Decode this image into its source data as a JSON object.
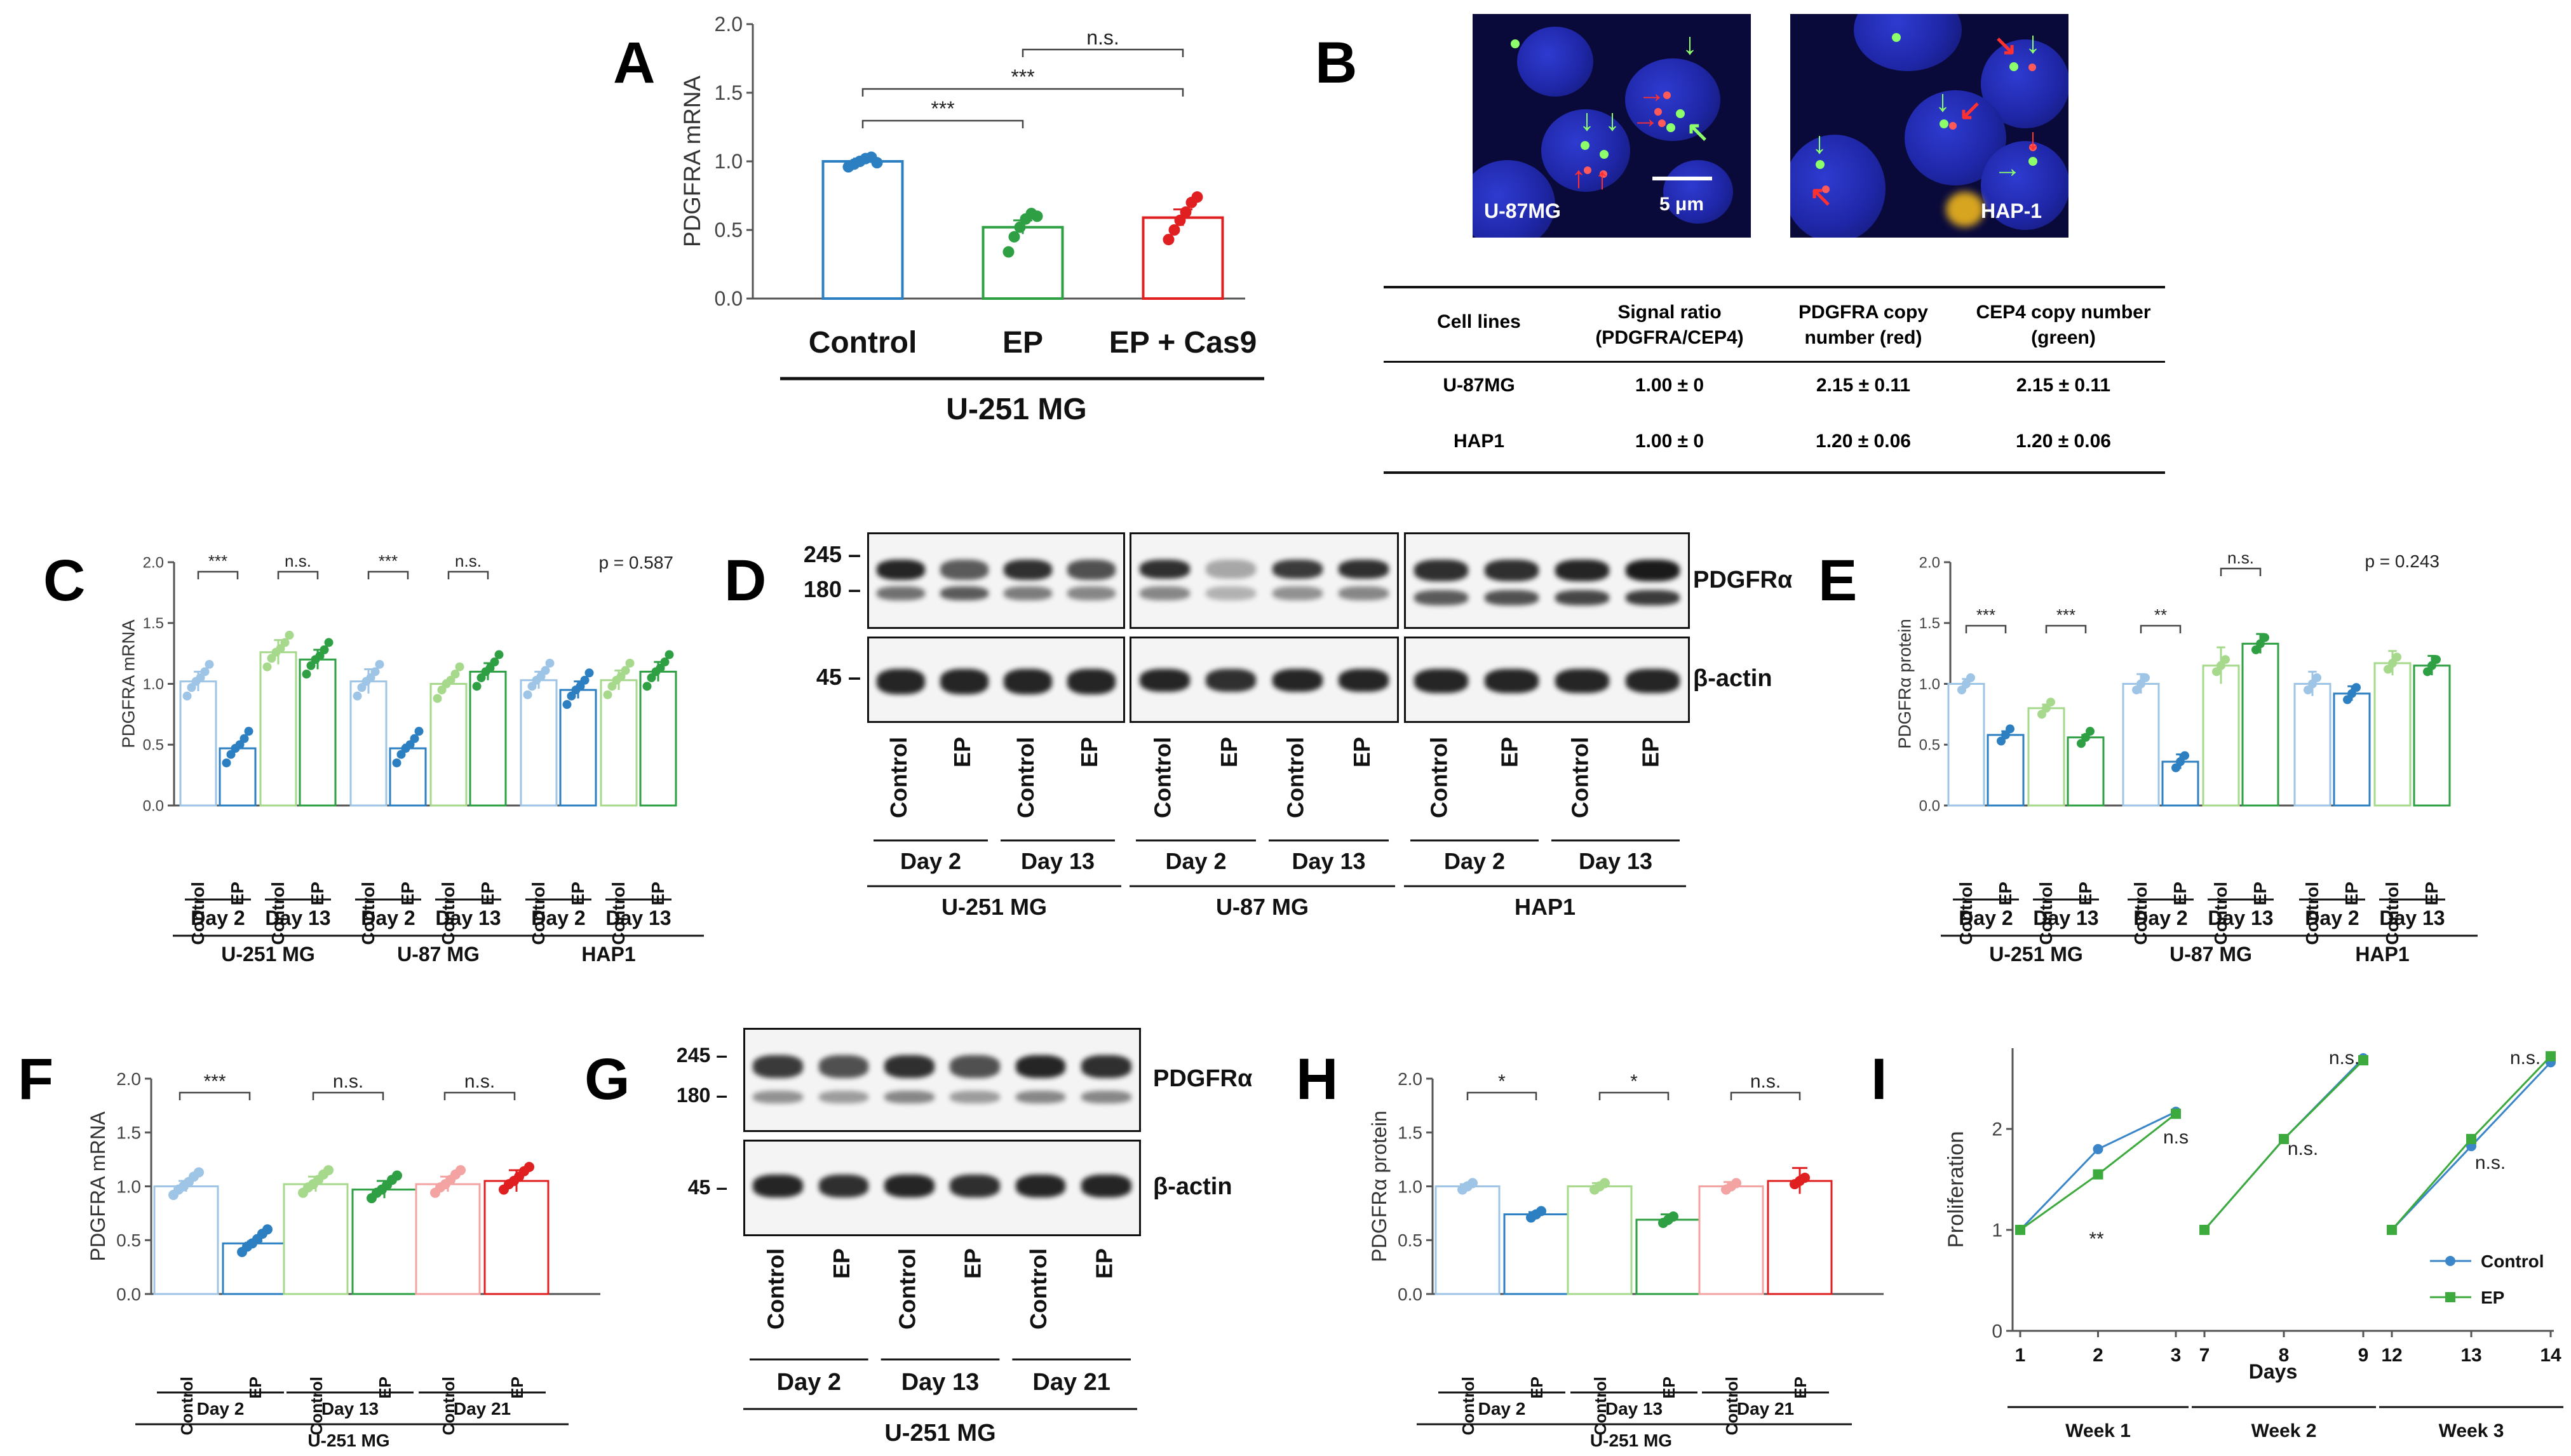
{
  "figure": {
    "panels": [
      "A",
      "B",
      "C",
      "D",
      "E",
      "F",
      "G",
      "H",
      "I"
    ]
  },
  "panel_a": {
    "label": "A",
    "ylabel": "PDGFRA mRNA",
    "yticks": [
      "0.0",
      "0.5",
      "1.0",
      "1.5",
      "2.0"
    ],
    "categories": [
      "Control",
      "EP",
      "EP + Cas9"
    ],
    "group_label": "U-251 MG",
    "sig": [
      {
        "between": [
          "Control",
          "EP"
        ],
        "text": "***"
      },
      {
        "between": [
          "Control",
          "EP + Cas9"
        ],
        "text": "***"
      },
      {
        "between": [
          "EP",
          "EP + Cas9"
        ],
        "text": "n.s."
      }
    ]
  },
  "panel_b": {
    "label": "B",
    "images": [
      {
        "caption": "U-87MG",
        "scalebar": "5 μm"
      },
      {
        "caption": "HAP-1",
        "scalebar": ""
      }
    ],
    "table": {
      "headers": [
        "Cell lines",
        "Signal ratio (PDGFRA/CEP4)",
        "PDGFRA copy number (red)",
        "CEP4 copy number  (green)"
      ],
      "rows": [
        [
          "U-87MG",
          "1.00 ± 0",
          "2.15 ± 0.11",
          "2.15 ± 0.11"
        ],
        [
          "HAP1",
          "1.00 ± 0",
          "1.20 ± 0.06",
          "1.20 ± 0.06"
        ]
      ]
    }
  },
  "panel_c": {
    "label": "C",
    "ylabel": "PDGFRA mRNA",
    "yticks": [
      "0.0",
      "0.5",
      "1.0",
      "1.5",
      "2.0"
    ],
    "pvalue": "p = 0.587",
    "sig": [
      "***",
      "n.s.",
      "***",
      "n.s."
    ],
    "cond_labels": [
      "Control",
      "EP"
    ],
    "day_labels": [
      "Day 2",
      "Day 13"
    ],
    "cell_lines": [
      "U-251 MG",
      "U-87 MG",
      "HAP1"
    ]
  },
  "panel_d": {
    "label": "D",
    "markers_top": [
      "245 –",
      "180 –"
    ],
    "marker_bottom": "45 –",
    "protein_top": "PDGFRα",
    "protein_bottom": "β-actin",
    "lane_labels": [
      "Control",
      "EP"
    ],
    "day_labels": [
      "Day 2",
      "Day 13"
    ],
    "cell_lines": [
      "U-251 MG",
      "U-87 MG",
      "HAP1"
    ]
  },
  "panel_e": {
    "label": "E",
    "ylabel": "PDGFRα protein",
    "yticks": [
      "0.0",
      "0.5",
      "1.0",
      "1.5",
      "2.0"
    ],
    "pvalue": "p = 0.243",
    "sig": [
      "***",
      "***",
      "**",
      "n.s."
    ],
    "cond_labels": [
      "Control",
      "EP"
    ],
    "day_labels": [
      "Day 2",
      "Day 13"
    ],
    "cell_lines": [
      "U-251 MG",
      "U-87 MG",
      "HAP1"
    ]
  },
  "panel_f": {
    "label": "F",
    "ylabel": "PDGFRA mRNA",
    "yticks": [
      "0.0",
      "0.5",
      "1.0",
      "1.5",
      "2.0"
    ],
    "sig": [
      "***",
      "n.s.",
      "n.s."
    ],
    "cond_labels": [
      "Control",
      "EP"
    ],
    "day_labels": [
      "Day 2",
      "Day 13",
      "Day 21"
    ],
    "cell_line": "U-251 MG"
  },
  "panel_g": {
    "label": "G",
    "markers_top": [
      "245 –",
      "180 –"
    ],
    "marker_bottom": "45 –",
    "protein_top": "PDGFRα",
    "protein_bottom": "β-actin",
    "lane_labels": [
      "Control",
      "EP"
    ],
    "day_labels": [
      "Day 2",
      "Day 13",
      "Day 21"
    ],
    "cell_line": "U-251 MG"
  },
  "panel_h": {
    "label": "H",
    "ylabel": "PDGFRα protein",
    "yticks": [
      "0.0",
      "0.5",
      "1.0",
      "1.5",
      "2.0"
    ],
    "sig": [
      "*",
      "*",
      "n.s."
    ],
    "cond_labels": [
      "Control",
      "EP"
    ],
    "day_labels": [
      "Day 2",
      "Day 13",
      "Day 21"
    ],
    "cell_line": "U-251 MG"
  },
  "panel_i": {
    "label": "I",
    "ylabel": "Proliferation",
    "xlabel": "Days",
    "yticks": [
      "0",
      "1",
      "2"
    ],
    "weeks": [
      "Week 1",
      "Week 2",
      "Week 3"
    ],
    "annotations": [
      [
        "**",
        "n.s"
      ],
      [
        "n.s.",
        "n.s."
      ],
      [
        "n.s.",
        "n.s."
      ]
    ],
    "legend": [
      "Control",
      "EP"
    ]
  },
  "colors": {
    "blue_light": "#9ec4e6",
    "blue": "#2c7fc1",
    "green_light": "#a6d98c",
    "green": "#2ea043",
    "red_light": "#f4a3a3",
    "red": "#e02020",
    "black": "#111111",
    "line_control": "#3a86c8",
    "line_ep": "#3caa3c"
  },
  "chart_data": [
    {
      "type": "bar",
      "panel": "A",
      "categories": [
        "Control",
        "EP",
        "EP + Cas9"
      ],
      "values": [
        1.0,
        0.52,
        0.59
      ],
      "errors": [
        0.02,
        0.05,
        0.06
      ],
      "points": [
        [
          0.96,
          0.98,
          1.0,
          1.02,
          1.03,
          0.99
        ],
        [
          0.34,
          0.45,
          0.52,
          0.58,
          0.62,
          0.6
        ],
        [
          0.43,
          0.5,
          0.57,
          0.63,
          0.7,
          0.74
        ]
      ],
      "ylabel": "PDGFRA mRNA",
      "ylim": [
        0,
        2.0
      ]
    },
    {
      "type": "bar",
      "panel": "C",
      "categories": [
        "U-251 MG Day 2 Control",
        "U-251 MG Day 2 EP",
        "U-251 MG Day 13 Control",
        "U-251 MG Day 13 EP",
        "U-87 MG Day 2 Control",
        "U-87 MG Day 2 EP",
        "U-87 MG Day 13 Control",
        "U-87 MG Day 13 EP",
        "HAP1 Day 2 Control",
        "HAP1 Day 2 EP",
        "HAP1 Day 13 Control",
        "HAP1 Day 13 EP"
      ],
      "values": [
        1.02,
        0.47,
        1.26,
        1.2,
        1.02,
        0.47,
        1.0,
        1.1,
        1.03,
        0.95,
        1.03,
        1.1
      ],
      "errors": [
        0.08,
        0.02,
        0.1,
        0.08,
        0.1,
        0.03,
        0.03,
        0.07,
        0.07,
        0.07,
        0.08,
        0.08
      ],
      "ylabel": "PDGFRA mRNA",
      "ylim": [
        0,
        2.0
      ]
    },
    {
      "type": "bar",
      "panel": "E",
      "categories": [
        "U-251 MG Day 2 Control",
        "U-251 MG Day 2 EP",
        "U-251 MG Day 13 Control",
        "U-251 MG Day 13 EP",
        "U-87 MG Day 2 Control",
        "U-87 MG Day 2 EP",
        "U-87 MG Day 13 Control",
        "U-87 MG Day 13 EP",
        "HAP1 Day 2 Control",
        "HAP1 Day 2 EP",
        "HAP1 Day 13 Control",
        "HAP1 Day 13 EP"
      ],
      "values": [
        1.0,
        0.58,
        0.8,
        0.56,
        1.0,
        0.36,
        1.15,
        1.33,
        1.0,
        0.92,
        1.17,
        1.15
      ],
      "errors": [
        0.04,
        0.03,
        0.03,
        0.02,
        0.08,
        0.06,
        0.15,
        0.08,
        0.1,
        0.06,
        0.1,
        0.08
      ],
      "ylabel": "PDGFRα protein",
      "ylim": [
        0,
        2.0
      ]
    },
    {
      "type": "bar",
      "panel": "F",
      "categories": [
        "Day 2 Control",
        "Day 2 EP",
        "Day 13 Control",
        "Day 13 EP",
        "Day 21 Control",
        "Day 21 EP"
      ],
      "values": [
        1.0,
        0.47,
        1.02,
        0.97,
        1.02,
        1.05
      ],
      "errors": [
        0.05,
        0.02,
        0.07,
        0.08,
        0.07,
        0.1
      ],
      "ylabel": "PDGFRA mRNA",
      "ylim": [
        0,
        2.0
      ]
    },
    {
      "type": "bar",
      "panel": "H",
      "categories": [
        "Day 2 Control",
        "Day 2 EP",
        "Day 13 Control",
        "Day 13 EP",
        "Day 21 Control",
        "Day 21 EP"
      ],
      "values": [
        1.0,
        0.74,
        1.0,
        0.69,
        1.0,
        1.05
      ],
      "errors": [
        0.02,
        0.02,
        0.03,
        0.05,
        0.04,
        0.12
      ],
      "ylabel": "PDGFRα protein",
      "ylim": [
        0,
        2.0
      ]
    },
    {
      "type": "line",
      "panel": "I",
      "weeks": [
        {
          "label": "Week 1",
          "x": [
            1,
            2,
            3
          ],
          "series": [
            {
              "name": "Control",
              "values": [
                1.0,
                1.8,
                2.17
              ]
            },
            {
              "name": "EP",
              "values": [
                1.0,
                1.55,
                2.15
              ]
            }
          ]
        },
        {
          "label": "Week 2",
          "x": [
            7,
            8,
            9
          ],
          "series": [
            {
              "name": "Control",
              "values": [
                1.0,
                1.9,
                2.7
              ]
            },
            {
              "name": "EP",
              "values": [
                1.0,
                1.9,
                2.68
              ]
            }
          ]
        },
        {
          "label": "Week 3",
          "x": [
            12,
            13,
            14
          ],
          "series": [
            {
              "name": "Control",
              "values": [
                1.0,
                1.83,
                2.66
              ]
            },
            {
              "name": "EP",
              "values": [
                1.0,
                1.9,
                2.72
              ]
            }
          ]
        }
      ],
      "ylabel": "Proliferation",
      "xlabel": "Days",
      "ylim": [
        0,
        2.8
      ]
    }
  ]
}
